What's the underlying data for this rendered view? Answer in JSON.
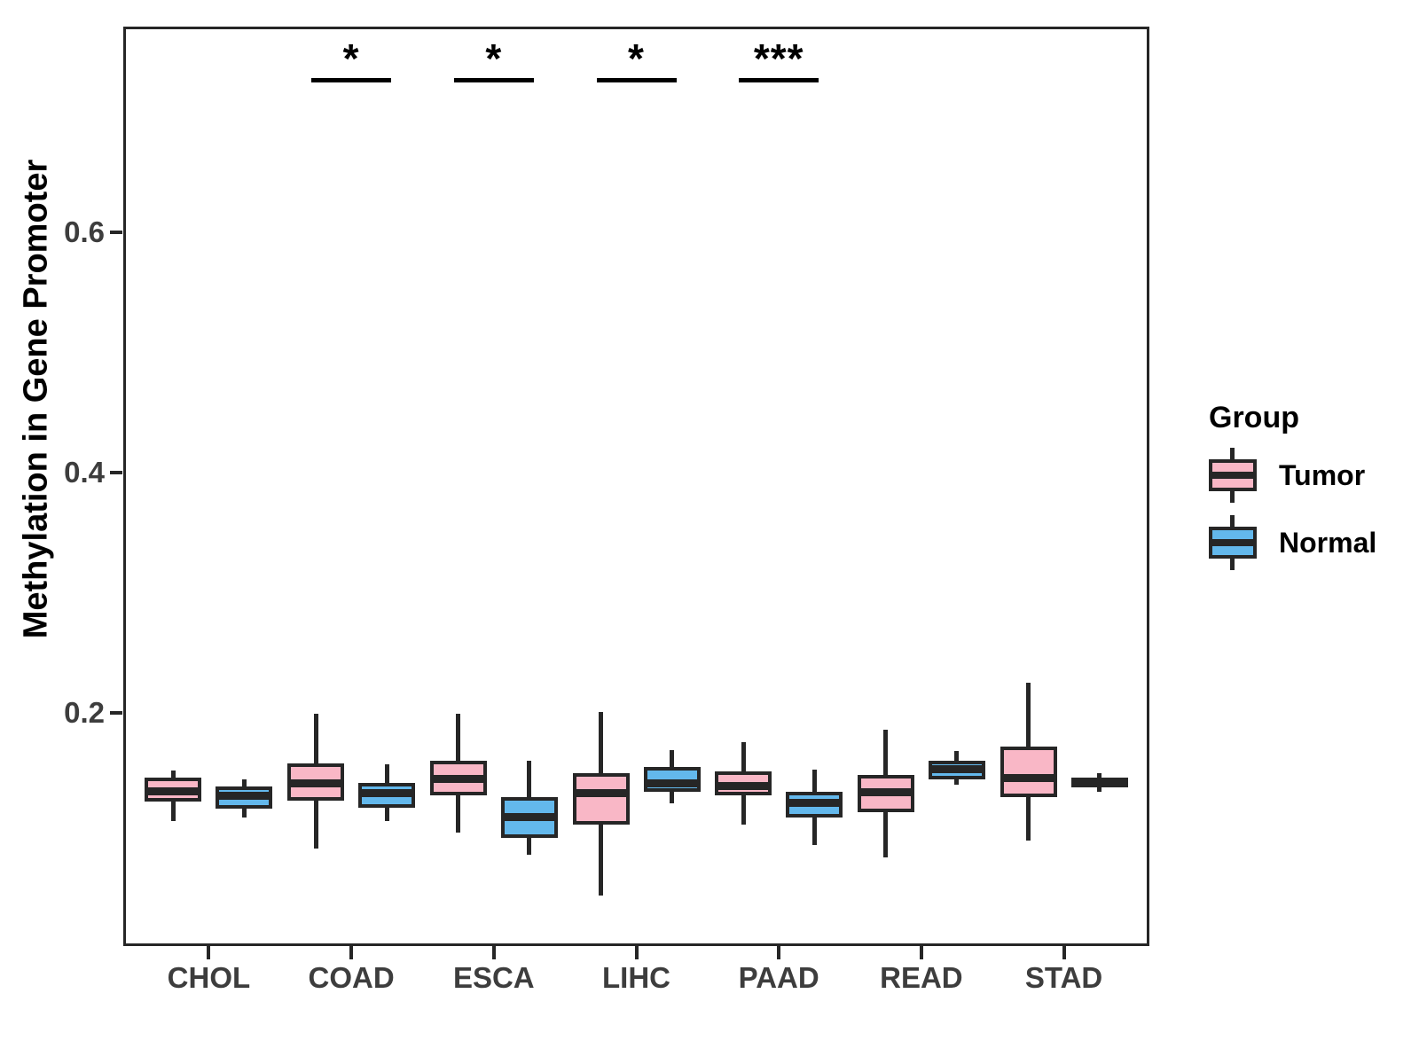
{
  "chart_data": {
    "type": "boxplot",
    "title": "",
    "xlabel": "",
    "ylabel": "Methylation in Gene Promoter",
    "categories": [
      "CHOL",
      "COAD",
      "ESCA",
      "LIHC",
      "PAAD",
      "READ",
      "STAD"
    ],
    "y_ticks": [
      {
        "label": "0.2",
        "value": 0.2
      },
      {
        "label": "0.4",
        "value": 0.4
      },
      {
        "label": "0.6",
        "value": 0.6
      }
    ],
    "ylim": [
      0.006,
      0.771
    ],
    "grid": false,
    "legend": {
      "title": "Group",
      "position": "right",
      "entries": [
        {
          "label": "Tumor",
          "color": "#F9B7C6"
        },
        {
          "label": "Normal",
          "color": "#63B8EC"
        }
      ]
    },
    "series": [
      {
        "name": "Tumor",
        "color": "#F9B7C6",
        "boxes": [
          {
            "category": "CHOL",
            "whisker_low": 0.11,
            "q1": 0.126,
            "median": 0.135,
            "q3": 0.146,
            "whisker_high": 0.152
          },
          {
            "category": "COAD",
            "whisker_low": 0.087,
            "q1": 0.127,
            "median": 0.141,
            "q3": 0.158,
            "whisker_high": 0.199
          },
          {
            "category": "ESCA",
            "whisker_low": 0.1,
            "q1": 0.131,
            "median": 0.145,
            "q3": 0.16,
            "whisker_high": 0.199
          },
          {
            "category": "LIHC",
            "whisker_low": 0.048,
            "q1": 0.107,
            "median": 0.133,
            "q3": 0.15,
            "whisker_high": 0.201
          },
          {
            "category": "PAAD",
            "whisker_low": 0.107,
            "q1": 0.131,
            "median": 0.139,
            "q3": 0.151,
            "whisker_high": 0.176
          },
          {
            "category": "READ",
            "whisker_low": 0.08,
            "q1": 0.117,
            "median": 0.134,
            "q3": 0.148,
            "whisker_high": 0.186
          },
          {
            "category": "STAD",
            "whisker_low": 0.094,
            "q1": 0.13,
            "median": 0.146,
            "q3": 0.172,
            "whisker_high": 0.225
          }
        ]
      },
      {
        "name": "Normal",
        "color": "#63B8EC",
        "boxes": [
          {
            "category": "CHOL",
            "whisker_low": 0.113,
            "q1": 0.12,
            "median": 0.131,
            "q3": 0.139,
            "whisker_high": 0.145
          },
          {
            "category": "COAD",
            "whisker_low": 0.11,
            "q1": 0.121,
            "median": 0.133,
            "q3": 0.142,
            "whisker_high": 0.157
          },
          {
            "category": "ESCA",
            "whisker_low": 0.082,
            "q1": 0.096,
            "median": 0.113,
            "q3": 0.13,
            "whisker_high": 0.16
          },
          {
            "category": "LIHC",
            "whisker_low": 0.125,
            "q1": 0.134,
            "median": 0.141,
            "q3": 0.155,
            "whisker_high": 0.169
          },
          {
            "category": "PAAD",
            "whisker_low": 0.09,
            "q1": 0.113,
            "median": 0.125,
            "q3": 0.134,
            "whisker_high": 0.153
          },
          {
            "category": "READ",
            "whisker_low": 0.14,
            "q1": 0.145,
            "median": 0.153,
            "q3": 0.16,
            "whisker_high": 0.168
          },
          {
            "category": "STAD",
            "whisker_low": 0.134,
            "q1": 0.138,
            "median": 0.142,
            "q3": 0.146,
            "whisker_high": 0.15
          }
        ]
      }
    ],
    "significance": [
      {
        "category": "COAD",
        "label": "*"
      },
      {
        "category": "ESCA",
        "label": "*"
      },
      {
        "category": "LIHC",
        "label": "*"
      },
      {
        "category": "PAAD",
        "label": "***"
      }
    ],
    "colors": {
      "line": "#262626",
      "tick_label": "#3d3d3d",
      "axis_title": "#000000"
    }
  }
}
